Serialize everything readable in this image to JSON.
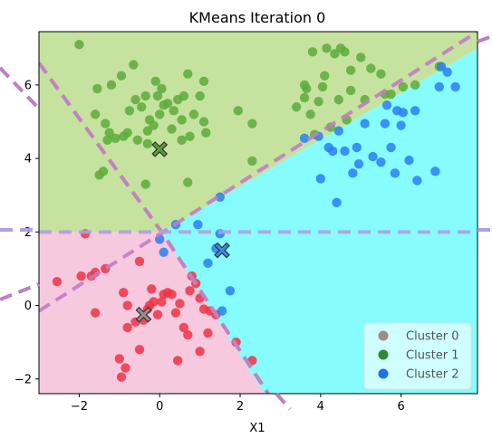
{
  "chart_data": {
    "type": "scatter",
    "title": "KMeans Iteration 0",
    "xlabel": "X1",
    "ylabel": "",
    "xlim": [
      -3.0,
      7.9
    ],
    "ylim": [
      -2.4,
      7.45
    ],
    "xticks": [
      -2,
      0,
      2,
      4,
      6
    ],
    "yticks": [
      -2,
      0,
      2,
      4,
      6
    ],
    "grid": false,
    "legend_position": "bottom-right",
    "legend": [
      {
        "label": "Cluster 0",
        "color": "#a08a8a"
      },
      {
        "label": "Cluster 1",
        "color": "#2e8b2e"
      },
      {
        "label": "Cluster 2",
        "color": "#1e6ff0"
      }
    ],
    "regions": [
      {
        "name": "Cluster 1 region",
        "color": "#c3e09a",
        "polygon": [
          [
            -3.0,
            7.45
          ],
          [
            7.9,
            7.45
          ],
          [
            7.9,
            7.0
          ],
          [
            0.05,
            2.0
          ],
          [
            -3.0,
            2.0
          ]
        ]
      },
      {
        "name": "Cluster 2 region",
        "color": "#7ffcfc",
        "polygon": [
          [
            0.05,
            2.0
          ],
          [
            7.9,
            7.0
          ],
          [
            7.9,
            -2.4
          ],
          [
            2.6,
            -2.4
          ],
          [
            0.05,
            2.0
          ]
        ]
      },
      {
        "name": "Cluster 0 region",
        "color": "#f7c6dc",
        "polygon": [
          [
            -3.0,
            2.0
          ],
          [
            0.05,
            2.0
          ],
          [
            2.6,
            -2.4
          ],
          [
            -3.0,
            -2.4
          ]
        ]
      }
    ],
    "boundaries": [
      {
        "color": "#c4a8a8",
        "points": [
          [
            -3.0,
            6.6
          ],
          [
            0.05,
            2.0
          ],
          [
            3.3,
            -3.4
          ]
        ]
      },
      {
        "color": "#c27cc8",
        "points": [
          [
            -3.0,
            -0.15
          ],
          [
            7.9,
            7.45
          ]
        ]
      },
      {
        "color": "#c27cc8",
        "points": [
          [
            -3.0,
            6.6
          ],
          [
            0.05,
            2.0
          ],
          [
            3.3,
            -3.4
          ]
        ]
      },
      {
        "color": "#b0a0e0",
        "points": [
          [
            -3.0,
            2.0
          ],
          [
            7.9,
            2.0
          ]
        ]
      }
    ],
    "centroids": [
      {
        "cluster": "Cluster 0",
        "x": -0.4,
        "y": -0.25,
        "color": "#a08a8a"
      },
      {
        "cluster": "Cluster 1",
        "x": 0.0,
        "y": 4.25,
        "color": "#5a9a3a"
      },
      {
        "cluster": "Cluster 2",
        "x": 1.55,
        "y": 1.5,
        "color": "#3a8ae0"
      }
    ],
    "series": [
      {
        "name": "Cluster 0",
        "color": "#ee3344",
        "points": [
          [
            -2.55,
            0.65
          ],
          [
            -1.95,
            0.8
          ],
          [
            -1.7,
            0.8
          ],
          [
            -1.6,
            0.9
          ],
          [
            -1.35,
            1.0
          ],
          [
            -1.85,
            1.95
          ],
          [
            -1.6,
            -0.2
          ],
          [
            -0.9,
            0.35
          ],
          [
            -0.8,
            0.0
          ],
          [
            -0.6,
            -0.45
          ],
          [
            -0.5,
            1.2
          ],
          [
            -0.4,
            -0.4
          ],
          [
            -0.3,
            -0.1
          ],
          [
            -0.25,
            0.0
          ],
          [
            -0.2,
            0.45
          ],
          [
            -0.15,
            0.1
          ],
          [
            -0.05,
            -0.25
          ],
          [
            0.05,
            0.1
          ],
          [
            0.1,
            0.3
          ],
          [
            0.2,
            0.35
          ],
          [
            0.3,
            0.3
          ],
          [
            0.4,
            -0.2
          ],
          [
            0.5,
            0.05
          ],
          [
            0.6,
            -0.6
          ],
          [
            0.7,
            -0.8
          ],
          [
            0.75,
            0.4
          ],
          [
            0.8,
            0.8
          ],
          [
            0.9,
            0.6
          ],
          [
            1.0,
            0.2
          ],
          [
            1.1,
            -0.1
          ],
          [
            1.25,
            -0.15
          ],
          [
            1.4,
            -0.25
          ],
          [
            1.2,
            -0.75
          ],
          [
            1.0,
            -1.25
          ],
          [
            0.45,
            -1.5
          ],
          [
            -0.5,
            -1.2
          ],
          [
            -0.85,
            -1.7
          ],
          [
            -1.0,
            -1.45
          ],
          [
            -0.95,
            -1.95
          ],
          [
            -0.8,
            -0.6
          ],
          [
            1.9,
            -1.0
          ],
          [
            2.3,
            -1.5
          ]
        ]
      },
      {
        "name": "Cluster 1",
        "color": "#5cab3a",
        "points": [
          [
            -2.0,
            7.1
          ],
          [
            -1.6,
            5.2
          ],
          [
            -1.55,
            5.9
          ],
          [
            -1.35,
            4.95
          ],
          [
            -1.3,
            4.5
          ],
          [
            -1.1,
            4.55
          ],
          [
            -1.2,
            6.0
          ],
          [
            -0.95,
            6.25
          ],
          [
            -0.9,
            4.6
          ],
          [
            -0.8,
            4.7
          ],
          [
            -0.75,
            5.3
          ],
          [
            -0.65,
            6.55
          ],
          [
            -0.6,
            5.6
          ],
          [
            -0.55,
            4.5
          ],
          [
            -0.45,
            5.4
          ],
          [
            -0.35,
            5.7
          ],
          [
            -0.3,
            4.75
          ],
          [
            -0.25,
            5.05
          ],
          [
            -0.15,
            4.9
          ],
          [
            -0.1,
            6.1
          ],
          [
            -0.05,
            5.7
          ],
          [
            0.0,
            5.2
          ],
          [
            0.05,
            5.9
          ],
          [
            0.1,
            5.45
          ],
          [
            0.2,
            5.5
          ],
          [
            0.3,
            4.8
          ],
          [
            0.35,
            5.3
          ],
          [
            0.45,
            5.6
          ],
          [
            0.55,
            5.05
          ],
          [
            0.55,
            4.5
          ],
          [
            0.6,
            5.7
          ],
          [
            0.7,
            6.3
          ],
          [
            0.75,
            4.6
          ],
          [
            0.85,
            5.2
          ],
          [
            1.0,
            5.7
          ],
          [
            1.1,
            5.0
          ],
          [
            1.15,
            4.7
          ],
          [
            1.1,
            6.1
          ],
          [
            -1.25,
            4.7
          ],
          [
            -1.5,
            3.55
          ],
          [
            -1.4,
            3.65
          ],
          [
            -0.35,
            3.3
          ],
          [
            0.7,
            3.35
          ],
          [
            -0.3,
            4.4
          ],
          [
            1.95,
            5.3
          ],
          [
            2.3,
            4.95
          ],
          [
            3.4,
            5.4
          ],
          [
            3.6,
            6.0
          ],
          [
            3.6,
            5.65
          ],
          [
            3.65,
            5.9
          ],
          [
            3.75,
            5.2
          ],
          [
            3.8,
            6.9
          ],
          [
            3.85,
            4.65
          ],
          [
            3.95,
            5.55
          ],
          [
            4.05,
            5.95
          ],
          [
            4.1,
            6.25
          ],
          [
            4.15,
            7.0
          ],
          [
            4.25,
            4.85
          ],
          [
            4.35,
            6.85
          ],
          [
            4.45,
            5.6
          ],
          [
            4.5,
            7.0
          ],
          [
            4.6,
            6.9
          ],
          [
            4.65,
            5.05
          ],
          [
            4.75,
            5.85
          ],
          [
            4.75,
            6.4
          ],
          [
            5.0,
            6.75
          ],
          [
            5.1,
            5.6
          ],
          [
            5.25,
            6.45
          ],
          [
            5.5,
            6.3
          ],
          [
            5.6,
            5.75
          ],
          [
            5.75,
            5.75
          ],
          [
            6.05,
            5.95
          ],
          [
            6.35,
            6.0
          ],
          [
            6.95,
            6.5
          ],
          [
            2.3,
            3.93
          ]
        ]
      },
      {
        "name": "Cluster 2",
        "color": "#2a7ff4",
        "points": [
          [
            3.6,
            4.55
          ],
          [
            3.95,
            4.6
          ],
          [
            4.2,
            4.3
          ],
          [
            4.3,
            4.2
          ],
          [
            4.45,
            4.75
          ],
          [
            4.6,
            4.2
          ],
          [
            4.8,
            3.6
          ],
          [
            4.9,
            4.3
          ],
          [
            4.95,
            3.85
          ],
          [
            5.1,
            4.95
          ],
          [
            5.3,
            4.05
          ],
          [
            5.5,
            3.9
          ],
          [
            5.6,
            4.95
          ],
          [
            5.65,
            5.45
          ],
          [
            5.75,
            4.3
          ],
          [
            5.85,
            3.6
          ],
          [
            5.9,
            5.3
          ],
          [
            6.0,
            4.9
          ],
          [
            6.05,
            5.25
          ],
          [
            6.2,
            3.95
          ],
          [
            6.35,
            5.3
          ],
          [
            6.4,
            3.4
          ],
          [
            6.85,
            3.65
          ],
          [
            6.95,
            5.95
          ],
          [
            7.0,
            6.5
          ],
          [
            7.15,
            6.35
          ],
          [
            7.35,
            5.95
          ],
          [
            4.0,
            3.45
          ],
          [
            4.4,
            2.8
          ],
          [
            1.5,
            2.95
          ],
          [
            0.0,
            1.8
          ],
          [
            0.1,
            1.45
          ],
          [
            0.4,
            2.2
          ],
          [
            0.95,
            2.2
          ],
          [
            1.2,
            1.15
          ],
          [
            1.4,
            1.55
          ],
          [
            1.5,
            1.95
          ],
          [
            1.75,
            0.4
          ],
          [
            1.55,
            -0.15
          ]
        ]
      }
    ]
  }
}
